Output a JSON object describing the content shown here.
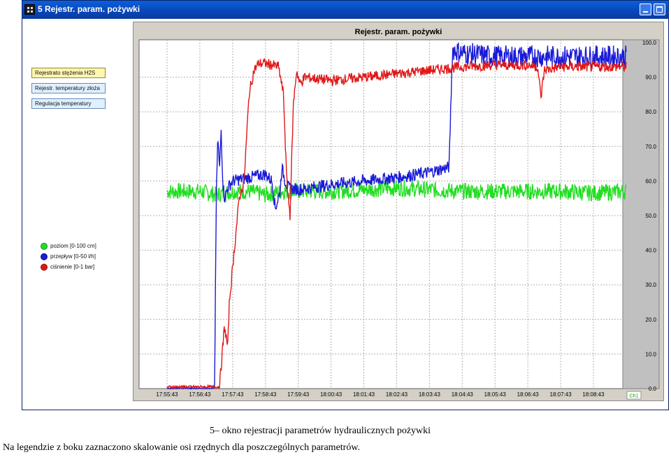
{
  "window": {
    "title": "5 Rejestr. param. pożywki"
  },
  "sidebar": {
    "buttons": [
      {
        "label": "Rejestrato stężenia H2S",
        "active": true
      },
      {
        "label": "Rejestr. temperatury złoża",
        "active": false
      },
      {
        "label": "Regulacja temperatury",
        "active": false
      }
    ]
  },
  "legend": [
    {
      "label": "poziom [0-100 cm]",
      "color": "#22dd22"
    },
    {
      "label": "przepływ [0-50 l/h]",
      "color": "#1a1ad8"
    },
    {
      "label": "ciśnienie [0-1 bar]",
      "color": "#e01818"
    }
  ],
  "chart_data": {
    "type": "line",
    "title": "Rejestr. param. pożywki",
    "x_ticks": [
      "17:55:43",
      "17:56:43",
      "17:57:43",
      "17:58:43",
      "17:59:43",
      "18:00:43",
      "18:01:43",
      "18:02:43",
      "18:03:43",
      "18:04:43",
      "18:05:43",
      "18:06:43",
      "18:07:43",
      "18:08:43"
    ],
    "y_ticks": [
      "100.0",
      "90.0",
      "80.0",
      "70.0",
      "60.0",
      "50.0",
      "40.0",
      "30.0",
      "20.0",
      "10.0",
      "0.0"
    ],
    "ylim": [
      0,
      100
    ],
    "grid": true,
    "channel_label": "Ch1",
    "series": [
      {
        "key": "poziom",
        "color": "#22dd22",
        "points": [
          [
            0,
            57
          ],
          [
            1,
            57
          ],
          [
            1.5,
            56
          ],
          [
            2,
            57
          ],
          [
            2.5,
            57
          ],
          [
            3,
            56
          ],
          [
            3.5,
            57
          ],
          [
            4,
            57
          ],
          [
            5,
            57
          ],
          [
            6,
            57.5
          ],
          [
            7,
            58
          ],
          [
            8,
            57.5
          ],
          [
            9,
            57
          ],
          [
            10,
            57
          ],
          [
            11,
            57
          ],
          [
            12,
            57
          ],
          [
            13,
            56.5
          ],
          [
            14,
            57
          ]
        ]
      },
      {
        "key": "przeplyw",
        "color": "#1a1ad8",
        "points": [
          [
            0,
            0
          ],
          [
            1.3,
            0
          ],
          [
            1.45,
            0
          ],
          [
            1.5,
            55
          ],
          [
            1.55,
            73
          ],
          [
            1.6,
            63
          ],
          [
            1.65,
            75
          ],
          [
            1.7,
            60
          ],
          [
            1.75,
            55
          ],
          [
            1.85,
            58
          ],
          [
            2,
            60
          ],
          [
            2.5,
            61
          ],
          [
            3,
            62
          ],
          [
            3.2,
            60
          ],
          [
            3.3,
            52
          ],
          [
            3.45,
            57
          ],
          [
            3.5,
            64
          ],
          [
            3.6,
            60
          ],
          [
            3.7,
            58
          ],
          [
            4,
            57.5
          ],
          [
            5,
            59
          ],
          [
            6,
            60
          ],
          [
            7,
            61
          ],
          [
            8,
            62.5
          ],
          [
            8.6,
            64
          ],
          [
            8.7,
            98
          ],
          [
            9,
            97
          ],
          [
            10,
            96
          ],
          [
            11,
            96
          ],
          [
            12,
            96
          ],
          [
            13,
            96
          ],
          [
            14,
            96
          ]
        ]
      },
      {
        "key": "cisnienie",
        "color": "#e01818",
        "points": [
          [
            0,
            0.5
          ],
          [
            1,
            0.5
          ],
          [
            1.6,
            0.5
          ],
          [
            1.75,
            18
          ],
          [
            1.85,
            12
          ],
          [
            1.9,
            25
          ],
          [
            2.05,
            40
          ],
          [
            2.2,
            55
          ],
          [
            2.35,
            60
          ],
          [
            2.5,
            85
          ],
          [
            2.65,
            92
          ],
          [
            2.8,
            94
          ],
          [
            3,
            94
          ],
          [
            3.4,
            93
          ],
          [
            3.55,
            85
          ],
          [
            3.65,
            60
          ],
          [
            3.75,
            50
          ],
          [
            3.85,
            82
          ],
          [
            3.95,
            92
          ],
          [
            4.05,
            88
          ],
          [
            4.2,
            90
          ],
          [
            5,
            89
          ],
          [
            6,
            90
          ],
          [
            7,
            91
          ],
          [
            8,
            92
          ],
          [
            9,
            93
          ],
          [
            10,
            93.5
          ],
          [
            11,
            93.5
          ],
          [
            11.3,
            93
          ],
          [
            11.4,
            84
          ],
          [
            11.5,
            92
          ],
          [
            12,
            93
          ],
          [
            13,
            93
          ],
          [
            14,
            93
          ]
        ]
      }
    ]
  },
  "caption": {
    "line1": "5– okno rejestracji parametrów hydraulicznych pożywki",
    "line2": "Na legendzie z boku zaznaczono skalowanie osi rzędnych dla poszczególnych parametrów."
  }
}
